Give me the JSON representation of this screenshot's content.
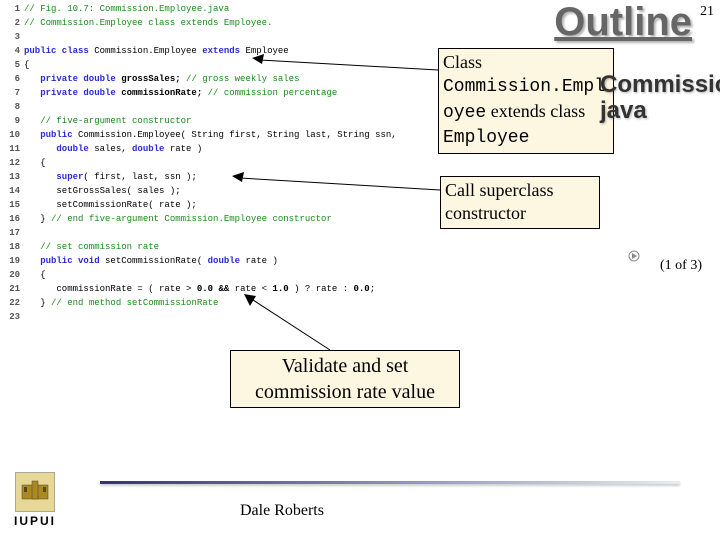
{
  "outline_title": "Outline",
  "page_number": "21",
  "side_title": "Commission.Employee. java",
  "page_of": "(1 of 3)",
  "footer_name": "Dale Roberts",
  "logo_text": "IUPUI",
  "callouts": {
    "c1_line1": "Class ",
    "c1_mono1": "Commission.Empl",
    "c1_line2a": "oyee",
    "c1_line2b": " extends class ",
    "c1_mono2": "Employee",
    "c2": "Call superclass constructor",
    "c3": "Validate and set commission rate value"
  },
  "code": {
    "lines": [
      {
        "n": "1",
        "pre": "",
        "seg": [
          [
            "c-comment",
            "// Fig. 10.7: Commission.Employee.java"
          ]
        ]
      },
      {
        "n": "2",
        "pre": "",
        "seg": [
          [
            "c-comment",
            "// Commission.Employee class extends Employee."
          ]
        ]
      },
      {
        "n": "3",
        "pre": "",
        "seg": []
      },
      {
        "n": "4",
        "pre": "",
        "seg": [
          [
            "c-keyword",
            "public class "
          ],
          [
            "",
            "Commission.Employee "
          ],
          [
            "c-keyword",
            "extends "
          ],
          [
            "",
            "Employee"
          ]
        ]
      },
      {
        "n": "5",
        "pre": "",
        "seg": [
          [
            "",
            "{"
          ]
        ]
      },
      {
        "n": "6",
        "pre": "   ",
        "seg": [
          [
            "c-keyword",
            "private double "
          ],
          [
            "c-ident",
            "grossSales;"
          ],
          [
            "",
            " "
          ],
          [
            "c-comment",
            "// gross weekly sales"
          ]
        ]
      },
      {
        "n": "7",
        "pre": "   ",
        "seg": [
          [
            "c-keyword",
            "private double "
          ],
          [
            "c-ident",
            "commissionRate;"
          ],
          [
            "",
            " "
          ],
          [
            "c-comment",
            "// commission percentage"
          ]
        ]
      },
      {
        "n": "8",
        "pre": "",
        "seg": []
      },
      {
        "n": "9",
        "pre": "   ",
        "seg": [
          [
            "c-comment",
            "// five-argument constructor"
          ]
        ]
      },
      {
        "n": "10",
        "pre": "   ",
        "seg": [
          [
            "c-keyword",
            "public "
          ],
          [
            "",
            "Commission.Employee( String first, String last, String ssn,"
          ]
        ]
      },
      {
        "n": "11",
        "pre": "      ",
        "seg": [
          [
            "c-keyword",
            "double "
          ],
          [
            "",
            "sales, "
          ],
          [
            "c-keyword",
            "double "
          ],
          [
            "",
            "rate )"
          ]
        ]
      },
      {
        "n": "12",
        "pre": "   ",
        "seg": [
          [
            "",
            "{"
          ]
        ]
      },
      {
        "n": "13",
        "pre": "      ",
        "seg": [
          [
            "c-keyword",
            "super"
          ],
          [
            "",
            "( first, last, ssn );"
          ]
        ]
      },
      {
        "n": "14",
        "pre": "      ",
        "seg": [
          [
            "",
            "setGrossSales( sales );"
          ]
        ]
      },
      {
        "n": "15",
        "pre": "      ",
        "seg": [
          [
            "",
            "setCommissionRate( rate );"
          ]
        ]
      },
      {
        "n": "16",
        "pre": "   ",
        "seg": [
          [
            "",
            "} "
          ],
          [
            "c-comment",
            "// end five-argument Commission.Employee constructor"
          ]
        ]
      },
      {
        "n": "17",
        "pre": "",
        "seg": []
      },
      {
        "n": "18",
        "pre": "   ",
        "seg": [
          [
            "c-comment",
            "// set commission rate"
          ]
        ]
      },
      {
        "n": "19",
        "pre": "   ",
        "seg": [
          [
            "c-keyword",
            "public void "
          ],
          [
            "",
            "setCommissionRate( "
          ],
          [
            "c-keyword",
            "double "
          ],
          [
            "",
            "rate )"
          ]
        ]
      },
      {
        "n": "20",
        "pre": "   ",
        "seg": [
          [
            "",
            "{"
          ]
        ]
      },
      {
        "n": "21",
        "pre": "      ",
        "seg": [
          [
            "",
            "commissionRate = ( rate > "
          ],
          [
            "c-ident",
            "0.0 "
          ],
          [
            "c-ident",
            "&&"
          ],
          [
            "",
            " rate < "
          ],
          [
            "c-ident",
            "1.0"
          ],
          [
            "",
            " ) ? rate : "
          ],
          [
            "c-ident",
            "0.0"
          ],
          [
            "",
            ";"
          ]
        ]
      },
      {
        "n": "22",
        "pre": "   ",
        "seg": [
          [
            "",
            "} "
          ],
          [
            "c-comment",
            "// end method setCommissionRate"
          ]
        ]
      },
      {
        "n": "23",
        "pre": "",
        "seg": []
      }
    ]
  },
  "colors": {
    "callout_bg": "#fdf6e0",
    "callout_border": "#000000",
    "arrow_line": "#000000",
    "outline_color": "#666666",
    "hr_color": "#3a3a78"
  }
}
